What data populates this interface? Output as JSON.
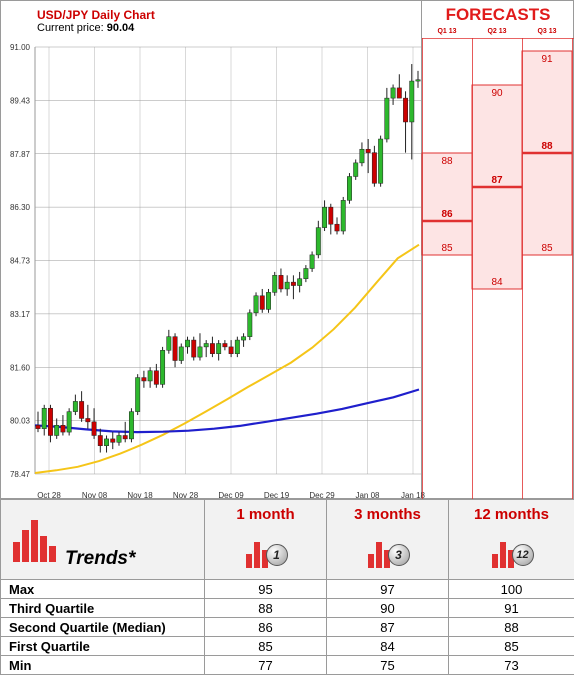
{
  "header": {
    "title": "USD/JPY Daily Chart",
    "price_label": "Current price: ",
    "price_value": "90.04"
  },
  "forecasts": {
    "title": "FORECASTS",
    "quarters": [
      "Q1 13",
      "Q2 13",
      "Q3 13"
    ],
    "bands": [
      {
        "q": "Q1 13",
        "low": 85,
        "median": 86,
        "high": 88
      },
      {
        "q": "Q2 13",
        "low": 84,
        "median": 87,
        "high": 90
      },
      {
        "q": "Q3 13",
        "low": 85,
        "median": 88,
        "high": 91
      }
    ]
  },
  "chart_data": {
    "type": "candlestick",
    "title": "USD/JPY Daily Chart",
    "ylim": [
      78.47,
      91.0
    ],
    "y_ticks": [
      "91.00",
      "89.43",
      "87.87",
      "86.30",
      "84.73",
      "83.17",
      "81.60",
      "80.03",
      "78.47"
    ],
    "x_ticks": [
      "Oct 28",
      "Nov 08",
      "Nov 18",
      "Nov 28",
      "Dec 09",
      "Dec 19",
      "Dec 29",
      "Jan 08",
      "Jan 18"
    ],
    "grid": true,
    "candles": [
      {
        "o": 79.9,
        "h": 80.3,
        "l": 79.7,
        "c": 79.8
      },
      {
        "o": 79.8,
        "h": 80.5,
        "l": 79.6,
        "c": 80.4
      },
      {
        "o": 80.4,
        "h": 80.5,
        "l": 79.4,
        "c": 79.6
      },
      {
        "o": 79.6,
        "h": 80.1,
        "l": 79.5,
        "c": 79.9
      },
      {
        "o": 79.9,
        "h": 80.2,
        "l": 79.6,
        "c": 79.7
      },
      {
        "o": 79.7,
        "h": 80.4,
        "l": 79.6,
        "c": 80.3
      },
      {
        "o": 80.3,
        "h": 80.8,
        "l": 80.2,
        "c": 80.6
      },
      {
        "o": 80.6,
        "h": 80.9,
        "l": 80.0,
        "c": 80.1
      },
      {
        "o": 80.1,
        "h": 80.5,
        "l": 79.8,
        "c": 80.0
      },
      {
        "o": 80.0,
        "h": 80.4,
        "l": 79.5,
        "c": 79.6
      },
      {
        "o": 79.6,
        "h": 79.8,
        "l": 79.1,
        "c": 79.3
      },
      {
        "o": 79.3,
        "h": 79.6,
        "l": 79.1,
        "c": 79.5
      },
      {
        "o": 79.5,
        "h": 79.7,
        "l": 79.2,
        "c": 79.4
      },
      {
        "o": 79.4,
        "h": 79.7,
        "l": 79.3,
        "c": 79.6
      },
      {
        "o": 79.6,
        "h": 80.0,
        "l": 79.4,
        "c": 79.5
      },
      {
        "o": 79.5,
        "h": 80.4,
        "l": 79.4,
        "c": 80.3
      },
      {
        "o": 80.3,
        "h": 81.4,
        "l": 80.2,
        "c": 81.3
      },
      {
        "o": 81.3,
        "h": 81.5,
        "l": 81.0,
        "c": 81.2
      },
      {
        "o": 81.2,
        "h": 81.6,
        "l": 81.0,
        "c": 81.5
      },
      {
        "o": 81.5,
        "h": 81.7,
        "l": 81.0,
        "c": 81.1
      },
      {
        "o": 81.1,
        "h": 82.2,
        "l": 81.0,
        "c": 82.1
      },
      {
        "o": 82.1,
        "h": 82.7,
        "l": 82.0,
        "c": 82.5
      },
      {
        "o": 82.5,
        "h": 82.6,
        "l": 81.6,
        "c": 81.8
      },
      {
        "o": 81.8,
        "h": 82.3,
        "l": 81.7,
        "c": 82.2
      },
      {
        "o": 82.2,
        "h": 82.5,
        "l": 82.0,
        "c": 82.4
      },
      {
        "o": 82.4,
        "h": 82.5,
        "l": 81.8,
        "c": 81.9
      },
      {
        "o": 81.9,
        "h": 82.6,
        "l": 81.8,
        "c": 82.2
      },
      {
        "o": 82.2,
        "h": 82.4,
        "l": 81.9,
        "c": 82.3
      },
      {
        "o": 82.3,
        "h": 82.5,
        "l": 81.9,
        "c": 82.0
      },
      {
        "o": 82.0,
        "h": 82.4,
        "l": 81.8,
        "c": 82.3
      },
      {
        "o": 82.3,
        "h": 82.4,
        "l": 82.1,
        "c": 82.2
      },
      {
        "o": 82.2,
        "h": 82.4,
        "l": 81.9,
        "c": 82.0
      },
      {
        "o": 82.0,
        "h": 82.5,
        "l": 81.9,
        "c": 82.4
      },
      {
        "o": 82.4,
        "h": 82.6,
        "l": 82.2,
        "c": 82.5
      },
      {
        "o": 82.5,
        "h": 83.3,
        "l": 82.4,
        "c": 83.2
      },
      {
        "o": 83.2,
        "h": 83.8,
        "l": 83.1,
        "c": 83.7
      },
      {
        "o": 83.7,
        "h": 83.9,
        "l": 83.2,
        "c": 83.3
      },
      {
        "o": 83.3,
        "h": 83.9,
        "l": 83.2,
        "c": 83.8
      },
      {
        "o": 83.8,
        "h": 84.4,
        "l": 83.7,
        "c": 84.3
      },
      {
        "o": 84.3,
        "h": 84.5,
        "l": 83.8,
        "c": 83.9
      },
      {
        "o": 83.9,
        "h": 84.3,
        "l": 83.7,
        "c": 84.1
      },
      {
        "o": 84.1,
        "h": 84.3,
        "l": 83.6,
        "c": 84.0
      },
      {
        "o": 84.0,
        "h": 84.4,
        "l": 83.8,
        "c": 84.2
      },
      {
        "o": 84.2,
        "h": 84.6,
        "l": 84.1,
        "c": 84.5
      },
      {
        "o": 84.5,
        "h": 85.0,
        "l": 84.4,
        "c": 84.9
      },
      {
        "o": 84.9,
        "h": 85.9,
        "l": 84.8,
        "c": 85.7
      },
      {
        "o": 85.7,
        "h": 86.5,
        "l": 85.6,
        "c": 86.3
      },
      {
        "o": 86.3,
        "h": 86.4,
        "l": 85.5,
        "c": 85.8
      },
      {
        "o": 85.8,
        "h": 86.0,
        "l": 85.5,
        "c": 85.6
      },
      {
        "o": 85.6,
        "h": 86.6,
        "l": 85.5,
        "c": 86.5
      },
      {
        "o": 86.5,
        "h": 87.3,
        "l": 86.4,
        "c": 87.2
      },
      {
        "o": 87.2,
        "h": 87.7,
        "l": 87.1,
        "c": 87.6
      },
      {
        "o": 87.6,
        "h": 88.2,
        "l": 87.5,
        "c": 88.0
      },
      {
        "o": 88.0,
        "h": 88.3,
        "l": 87.3,
        "c": 87.9
      },
      {
        "o": 87.9,
        "h": 88.1,
        "l": 86.9,
        "c": 87.0
      },
      {
        "o": 87.0,
        "h": 88.4,
        "l": 86.9,
        "c": 88.3
      },
      {
        "o": 88.3,
        "h": 89.8,
        "l": 88.2,
        "c": 89.5
      },
      {
        "o": 89.5,
        "h": 89.9,
        "l": 89.3,
        "c": 89.8
      },
      {
        "o": 89.8,
        "h": 90.2,
        "l": 89.5,
        "c": 89.5
      },
      {
        "o": 89.5,
        "h": 89.7,
        "l": 87.9,
        "c": 88.8
      },
      {
        "o": 88.8,
        "h": 90.5,
        "l": 87.7,
        "c": 90.0
      },
      {
        "o": 90.0,
        "h": 90.3,
        "l": 89.8,
        "c": 90.04
      }
    ],
    "ma_fast": [
      78.5,
      78.58,
      78.68,
      78.85,
      79.07,
      79.33,
      79.62,
      79.95,
      80.3,
      80.66,
      81.03,
      81.38,
      81.74,
      82.18,
      82.72,
      83.35,
      84.08,
      84.8,
      85.2
    ],
    "ma_slow": [
      79.9,
      79.85,
      79.78,
      79.72,
      79.7,
      79.71,
      79.74,
      79.8,
      79.88,
      80.0,
      80.12,
      80.24,
      80.38,
      80.55,
      80.72,
      80.95
    ]
  },
  "trends": {
    "label": "Trends*",
    "columns": [
      "1 month",
      "3 months",
      "12 months"
    ],
    "badges": [
      "1",
      "3",
      "12"
    ],
    "rows": [
      {
        "label": "Max",
        "values": [
          "95",
          "97",
          "100"
        ]
      },
      {
        "label": "Third Quartile",
        "values": [
          "88",
          "90",
          "91"
        ]
      },
      {
        "label": "Second Quartile (Median)",
        "values": [
          "86",
          "87",
          "88"
        ]
      },
      {
        "label": "First Quartile",
        "values": [
          "85",
          "84",
          "85"
        ]
      },
      {
        "label": "Min",
        "values": [
          "77",
          "75",
          "73"
        ]
      }
    ]
  },
  "colors": {
    "bull": "#2db82d",
    "bear": "#cc0000",
    "ma_fast": "#f5c518",
    "ma_slow": "#1f1fcc",
    "forecast_fill": "#fde4e4",
    "forecast_line": "#e03131"
  }
}
